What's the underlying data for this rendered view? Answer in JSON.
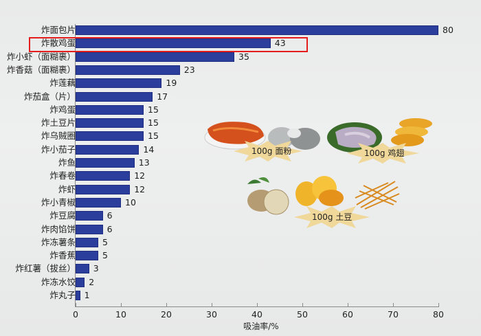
{
  "chart_data": {
    "type": "bar",
    "orientation": "horizontal",
    "title": "",
    "xlabel": "吸油率/%",
    "ylabel": "",
    "xlim": [
      0,
      80
    ],
    "x_ticks": [
      0,
      10,
      20,
      30,
      40,
      50,
      60,
      70,
      80
    ],
    "grid": false,
    "legend": null,
    "bar_color": "#2b3e9c",
    "highlight": {
      "category": "炸散鸡蛋",
      "box_color": "#e41c1c"
    },
    "categories": [
      "炸面包片",
      "炸散鸡蛋",
      "炸小虾（面糊裹）",
      "炸香菇（面糊裹）",
      "炸莲藕",
      "炸茄盒（片）",
      "炸鸡蛋",
      "炸土豆片",
      "炸乌贼圈",
      "炸小茄子",
      "炸鱼",
      "炸春卷",
      "炸虾",
      "炸小青椒",
      "炸豆腐",
      "炸肉馅饼",
      "炸冻薯条",
      "炸香蕉",
      "炸红薯（拔丝）",
      "炸冻水饺",
      "炸丸子"
    ],
    "values": [
      80,
      43,
      35,
      23,
      19,
      17,
      15,
      15,
      15,
      14,
      13,
      12,
      12,
      10,
      6,
      6,
      5,
      5,
      3,
      2,
      1
    ],
    "annotations": [
      "100g 面粉",
      "100g 鸡翅",
      "100g 土豆"
    ]
  },
  "rows": [
    {
      "label": "炸面包片",
      "value": "80"
    },
    {
      "label": "炸散鸡蛋",
      "value": "43"
    },
    {
      "label": "炸小虾（面糊裹）",
      "value": "35"
    },
    {
      "label": "炸香菇（面糊裹）",
      "value": "23"
    },
    {
      "label": "炸莲藕",
      "value": "19"
    },
    {
      "label": "炸茄盒（片）",
      "value": "17"
    },
    {
      "label": "炸鸡蛋",
      "value": "15"
    },
    {
      "label": "炸土豆片",
      "value": "15"
    },
    {
      "label": "炸乌贼圈",
      "value": "15"
    },
    {
      "label": "炸小茄子",
      "value": "14"
    },
    {
      "label": "炸鱼",
      "value": "13"
    },
    {
      "label": "炸春卷",
      "value": "12"
    },
    {
      "label": "炸虾",
      "value": "12"
    },
    {
      "label": "炸小青椒",
      "value": "10"
    },
    {
      "label": "炸豆腐",
      "value": "6"
    },
    {
      "label": "炸肉馅饼",
      "value": "6"
    },
    {
      "label": "炸冻薯条",
      "value": "5"
    },
    {
      "label": "炸香蕉",
      "value": "5"
    },
    {
      "label": "炸红薯（拔丝）",
      "value": "3"
    },
    {
      "label": "炸冻水饺",
      "value": "2"
    },
    {
      "label": "炸丸子",
      "value": "1"
    }
  ],
  "axis": {
    "title": "吸油率/%",
    "ticks": [
      "0",
      "10",
      "20",
      "30",
      "40",
      "50",
      "60",
      "70",
      "80"
    ]
  },
  "illustrations": {
    "flour": "100g 面粉",
    "chicken": "100g 鸡翅",
    "potato": "100g 土豆"
  }
}
